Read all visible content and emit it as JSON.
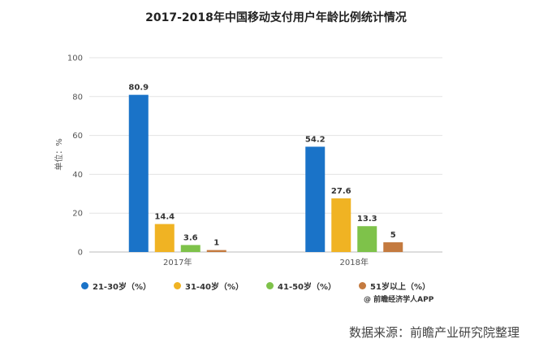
{
  "chart_data": {
    "type": "bar",
    "title": "2017-2018年中国移动支付用户年龄比例统计情况",
    "ylabel": "单位：%",
    "xlabel": "",
    "categories": [
      "2017年",
      "2018年"
    ],
    "ylim": [
      0,
      100
    ],
    "yticks": [
      0,
      20,
      40,
      60,
      80,
      100
    ],
    "grid": true,
    "legend_position": "bottom-left",
    "series": [
      {
        "name": "21-30岁（%）",
        "values": [
          80.9,
          54.2
        ],
        "color": "#1a73c8"
      },
      {
        "name": "31-40岁（%）",
        "values": [
          14.4,
          27.6
        ],
        "color": "#f0b323"
      },
      {
        "name": "41-50岁（%）",
        "values": [
          3.6,
          13.3
        ],
        "color": "#7ec24a"
      },
      {
        "name": "51岁以上（%）",
        "values": [
          1,
          5
        ],
        "color": "#c47a3f"
      }
    ],
    "data_labels": [
      [
        "80.9",
        "54.2"
      ],
      [
        "14.4",
        "27.6"
      ],
      [
        "3.6",
        "13.3"
      ],
      [
        "1",
        "5"
      ]
    ]
  },
  "credit": "@ 前瞻经济学人APP",
  "source": "数据来源：前瞻产业研究院整理"
}
